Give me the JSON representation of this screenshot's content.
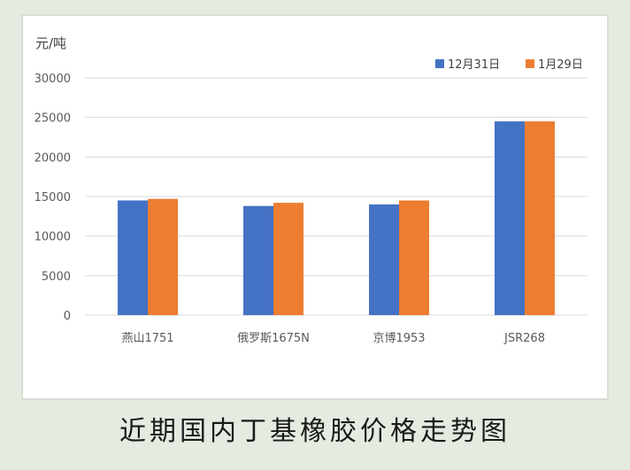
{
  "caption": "近期国内丁基橡胶价格走势图",
  "colors": {
    "series_1": "#4472c4",
    "series_2": "#ed7d31",
    "grid": "#d9d9d9"
  },
  "chart_data": {
    "type": "bar",
    "unit_label": "元/吨",
    "categories": [
      "燕山1751",
      "俄罗斯1675N",
      "京博1953",
      "JSR268"
    ],
    "series": [
      {
        "name": "12月31日",
        "values": [
          14500,
          13800,
          14000,
          24500
        ]
      },
      {
        "name": "1月29日",
        "values": [
          14700,
          14200,
          14500,
          24500
        ]
      }
    ],
    "ylim": [
      0,
      30000
    ],
    "yticks": [
      0,
      5000,
      10000,
      15000,
      20000,
      25000,
      30000
    ],
    "grid": true,
    "legend_position": "top-right"
  }
}
